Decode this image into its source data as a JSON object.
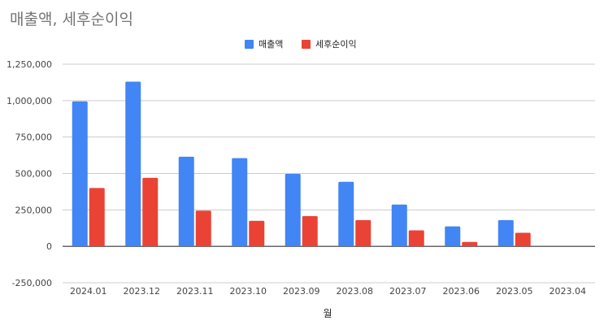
{
  "chart_data": {
    "type": "bar",
    "title": "매출액, 세후순이익",
    "xlabel": "월",
    "ylabel": "",
    "categories": [
      "2024.01",
      "2023.12",
      "2023.11",
      "2023.10",
      "2023.09",
      "2023.08",
      "2023.07",
      "2023.06",
      "2023.05",
      "2023.04"
    ],
    "series": [
      {
        "name": "매출액",
        "color": "#4285f4",
        "values": [
          995000,
          1130000,
          615000,
          605000,
          497000,
          443000,
          287000,
          137000,
          180000,
          0
        ]
      },
      {
        "name": "세후순이익",
        "color": "#ea4335",
        "values": [
          400000,
          470000,
          245000,
          175000,
          207000,
          180000,
          110000,
          30000,
          93000,
          0
        ]
      }
    ],
    "ylim": [
      -250000,
      1250000
    ],
    "yticks": [
      -250000,
      0,
      250000,
      500000,
      750000,
      1000000,
      1250000
    ],
    "ytick_labels": [
      "-250,000",
      "0",
      "250,000",
      "500,000",
      "750,000",
      "1,000,000",
      "1,250,000"
    ],
    "grid": true,
    "legend_position": "top-center"
  }
}
